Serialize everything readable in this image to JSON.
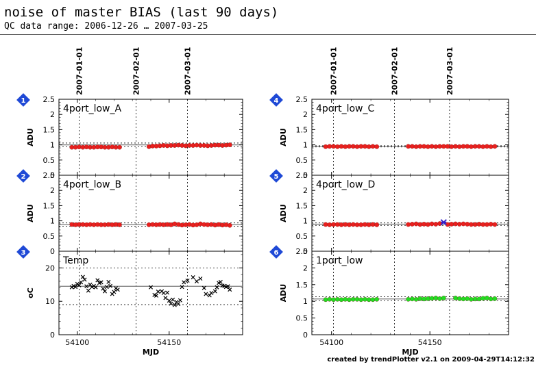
{
  "header": {
    "title": "noise of master BIAS (last 90 days)",
    "subtitle": "QC data range: 2006-12-26 … 2007-03-25"
  },
  "footer": "created by trendPlotter v2.1 on 2009-04-29T14:12:32",
  "colors": {
    "red": "#e8201e",
    "green": "#22dd22",
    "outlier": "#3322cc",
    "badge": "#1f49d6",
    "grid": "#000000"
  },
  "chart_data": [
    {
      "type": "scatter",
      "badge": "1",
      "name": "4port_low_A",
      "ylabel": "ADU",
      "ylim": [
        0,
        2.5
      ],
      "yticks": [
        "0",
        "0.5",
        "1",
        "1.5",
        "2",
        "2.5"
      ],
      "marker": "red",
      "mean": 1.0,
      "band": [
        0.94,
        1.06
      ],
      "x": [
        54097,
        54099,
        54101,
        54103,
        54105,
        54107,
        54109,
        54111,
        54113,
        54115,
        54117,
        54119,
        54121,
        54123,
        54139,
        54141,
        54143,
        54145,
        54147,
        54149,
        54151,
        54153,
        54155,
        54157,
        54159,
        54161,
        54163,
        54165,
        54167,
        54169,
        54171,
        54173,
        54175,
        54177,
        54179,
        54181,
        54183
      ],
      "y": [
        0.92,
        0.92,
        0.93,
        0.92,
        0.93,
        0.92,
        0.92,
        0.93,
        0.93,
        0.92,
        0.92,
        0.93,
        0.92,
        0.92,
        0.94,
        0.96,
        0.96,
        0.97,
        0.98,
        0.97,
        0.98,
        0.98,
        0.99,
        0.98,
        0.97,
        0.98,
        0.98,
        0.99,
        0.98,
        0.98,
        0.97,
        0.98,
        0.99,
        0.99,
        0.98,
        0.99,
        1.0
      ]
    },
    {
      "type": "scatter",
      "badge": "2",
      "name": "4port_low_B",
      "ylabel": "ADU",
      "ylim": [
        0,
        2.5
      ],
      "yticks": [
        "0",
        "0.5",
        "1",
        "1.5",
        "2",
        "2.5"
      ],
      "marker": "red",
      "mean": 0.87,
      "band": [
        0.82,
        0.93
      ],
      "x": [
        54097,
        54099,
        54101,
        54103,
        54105,
        54107,
        54109,
        54111,
        54113,
        54115,
        54117,
        54119,
        54121,
        54123,
        54139,
        54141,
        54143,
        54145,
        54147,
        54149,
        54151,
        54153,
        54155,
        54157,
        54159,
        54161,
        54163,
        54165,
        54167,
        54169,
        54171,
        54173,
        54175,
        54177,
        54179,
        54181,
        54183
      ],
      "y": [
        0.88,
        0.87,
        0.88,
        0.88,
        0.87,
        0.88,
        0.87,
        0.88,
        0.87,
        0.87,
        0.88,
        0.87,
        0.88,
        0.87,
        0.87,
        0.88,
        0.87,
        0.88,
        0.87,
        0.88,
        0.87,
        0.9,
        0.88,
        0.86,
        0.87,
        0.88,
        0.86,
        0.87,
        0.9,
        0.88,
        0.87,
        0.88,
        0.86,
        0.88,
        0.86,
        0.87,
        0.85
      ]
    },
    {
      "type": "scatter",
      "badge": "3",
      "name": "Temp",
      "ylabel": "oC",
      "xlabel": "MJD",
      "ylim": [
        0,
        25
      ],
      "yticks": [
        "0",
        "10",
        "20"
      ],
      "marker": "cross",
      "mean": 14.5,
      "band": [
        9,
        20
      ],
      "x": [
        54097,
        54098,
        54099,
        54100,
        54101,
        54102,
        54103,
        54104,
        54105,
        54106,
        54107,
        54108,
        54109,
        54110,
        54111,
        54112,
        54113,
        54114,
        54115,
        54116,
        54117,
        54118,
        54119,
        54120,
        54121,
        54122,
        54140,
        54142,
        54143,
        54144,
        54146,
        54147,
        54148,
        54149,
        54150,
        54151,
        54152,
        54153,
        54154,
        54155,
        54156,
        54157,
        54158,
        54160,
        54163,
        54165,
        54167,
        54169,
        54170,
        54172,
        54173,
        54175,
        54176,
        54177,
        54178,
        54179,
        54180,
        54181,
        54182,
        54183
      ],
      "y": [
        14.2,
        14.6,
        14.3,
        15.2,
        14.8,
        15.7,
        17.3,
        16.5,
        14.5,
        13.2,
        15.0,
        14.3,
        14.6,
        14.2,
        16.3,
        15.5,
        15.7,
        13.8,
        13.0,
        14.3,
        15.8,
        14.6,
        12.2,
        12.8,
        13.9,
        13.5,
        14.2,
        11.9,
        11.7,
        12.9,
        13.0,
        12.5,
        11.0,
        12.6,
        10.2,
        9.3,
        10.5,
        8.9,
        9.8,
        9.2,
        10.3,
        14.3,
        15.7,
        16.2,
        17.2,
        16.0,
        16.8,
        14.0,
        12.2,
        11.8,
        12.5,
        13.0,
        14.2,
        15.5,
        15.8,
        14.7,
        14.6,
        14.3,
        14.5,
        13.5
      ]
    },
    {
      "type": "scatter",
      "badge": "4",
      "name": "4port_low_C",
      "ylabel": "ADU",
      "ylim": [
        0,
        2.5
      ],
      "yticks": [
        "0",
        "0.5",
        "1",
        "1.5",
        "2",
        "2.5"
      ],
      "marker": "red",
      "mean": 0.95,
      "band": [
        0.93,
        0.97
      ],
      "x": [
        54097,
        54099,
        54101,
        54103,
        54105,
        54107,
        54109,
        54111,
        54113,
        54115,
        54117,
        54119,
        54121,
        54123,
        54139,
        54141,
        54143,
        54145,
        54147,
        54149,
        54151,
        54153,
        54155,
        54157,
        54159,
        54161,
        54163,
        54165,
        54167,
        54169,
        54171,
        54173,
        54175,
        54177,
        54179,
        54181,
        54183
      ],
      "y": [
        0.94,
        0.95,
        0.95,
        0.94,
        0.95,
        0.94,
        0.95,
        0.95,
        0.94,
        0.95,
        0.95,
        0.94,
        0.95,
        0.94,
        0.95,
        0.95,
        0.94,
        0.95,
        0.95,
        0.94,
        0.95,
        0.94,
        0.95,
        0.95,
        0.95,
        0.94,
        0.95,
        0.94,
        0.95,
        0.95,
        0.94,
        0.95,
        0.95,
        0.94,
        0.95,
        0.94,
        0.95
      ]
    },
    {
      "type": "scatter",
      "badge": "5",
      "name": "4port_low_D",
      "ylabel": "ADU",
      "ylim": [
        0,
        2.5
      ],
      "yticks": [
        "0",
        "0.5",
        "1",
        "1.5",
        "2",
        "2.5"
      ],
      "marker": "red",
      "mean": 0.89,
      "band": [
        0.85,
        0.93
      ],
      "outlier": {
        "x": 54157,
        "y": 0.95
      },
      "x": [
        54097,
        54099,
        54101,
        54103,
        54105,
        54107,
        54109,
        54111,
        54113,
        54115,
        54117,
        54119,
        54121,
        54123,
        54139,
        54141,
        54143,
        54145,
        54147,
        54149,
        54151,
        54153,
        54155,
        54159,
        54161,
        54163,
        54165,
        54167,
        54169,
        54171,
        54173,
        54175,
        54177,
        54179,
        54181,
        54183
      ],
      "y": [
        0.88,
        0.87,
        0.88,
        0.88,
        0.87,
        0.88,
        0.87,
        0.88,
        0.87,
        0.87,
        0.88,
        0.87,
        0.88,
        0.87,
        0.88,
        0.89,
        0.9,
        0.88,
        0.89,
        0.88,
        0.9,
        0.89,
        0.91,
        0.88,
        0.89,
        0.9,
        0.89,
        0.9,
        0.89,
        0.88,
        0.88,
        0.89,
        0.88,
        0.88,
        0.89,
        0.88
      ]
    },
    {
      "type": "scatter",
      "badge": "6",
      "name": "1port_low",
      "ylabel": "ADU",
      "xlabel": "MJD",
      "ylim": [
        0,
        2.5
      ],
      "yticks": [
        "0",
        "0.5",
        "1",
        "1.5",
        "2",
        "2.5"
      ],
      "marker": "green",
      "mean": 1.07,
      "band": [
        1.02,
        1.14
      ],
      "x": [
        54097,
        54099,
        54101,
        54103,
        54105,
        54107,
        54109,
        54111,
        54113,
        54115,
        54117,
        54119,
        54121,
        54123,
        54139,
        54141,
        54143,
        54145,
        54147,
        54149,
        54151,
        54153,
        54155,
        54157,
        54163,
        54165,
        54167,
        54169,
        54171,
        54173,
        54175,
        54177,
        54179,
        54181,
        54183
      ],
      "y": [
        1.05,
        1.06,
        1.05,
        1.06,
        1.05,
        1.06,
        1.05,
        1.06,
        1.06,
        1.05,
        1.06,
        1.05,
        1.05,
        1.06,
        1.06,
        1.07,
        1.06,
        1.08,
        1.07,
        1.08,
        1.09,
        1.1,
        1.08,
        1.1,
        1.1,
        1.08,
        1.07,
        1.08,
        1.06,
        1.07,
        1.07,
        1.09,
        1.1,
        1.07,
        1.08
      ]
    }
  ],
  "axes": {
    "xlim": [
      54090,
      54190
    ],
    "xticks": [
      {
        "value": 54100,
        "label": "54100"
      },
      {
        "value": 54150,
        "label": "54150"
      }
    ],
    "date_ticks": [
      {
        "value": 54101,
        "label": "2007-01-01"
      },
      {
        "value": 54132,
        "label": "2007-02-01"
      },
      {
        "value": 54160,
        "label": "2007-03-01"
      }
    ],
    "xlabel": "MJD"
  }
}
